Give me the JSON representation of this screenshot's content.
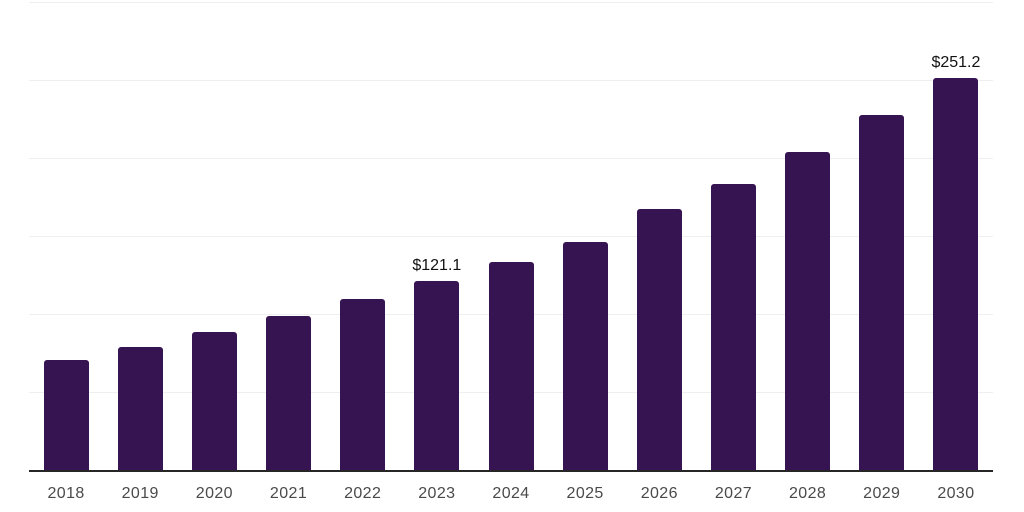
{
  "chart": {
    "colors": {
      "background": "#ffffff",
      "bar": "#361351",
      "gridline": "#efefef",
      "axis_line": "#262626",
      "year_label": "#4a4a4a",
      "value_label": "#121212"
    }
  },
  "chart_data": {
    "type": "bar",
    "title": "",
    "xlabel": "",
    "ylabel": "",
    "categories": [
      "2018",
      "2019",
      "2020",
      "2021",
      "2022",
      "2023",
      "2024",
      "2025",
      "2026",
      "2027",
      "2028",
      "2029",
      "2030"
    ],
    "values": [
      70.5,
      78.8,
      88.4,
      98.7,
      109.6,
      121.1,
      133.3,
      146.1,
      167.2,
      183.3,
      203.8,
      227.5,
      251.2
    ],
    "data_labels": [
      "",
      "",
      "",
      "",
      "",
      "$121.1",
      "",
      "",
      "",
      "",
      "",
      "",
      "$251.2"
    ],
    "ylim": [
      0,
      300
    ],
    "grid_step": 50,
    "grid": "horizontal-only",
    "legend": "none",
    "value_unit_prefix": "$"
  }
}
